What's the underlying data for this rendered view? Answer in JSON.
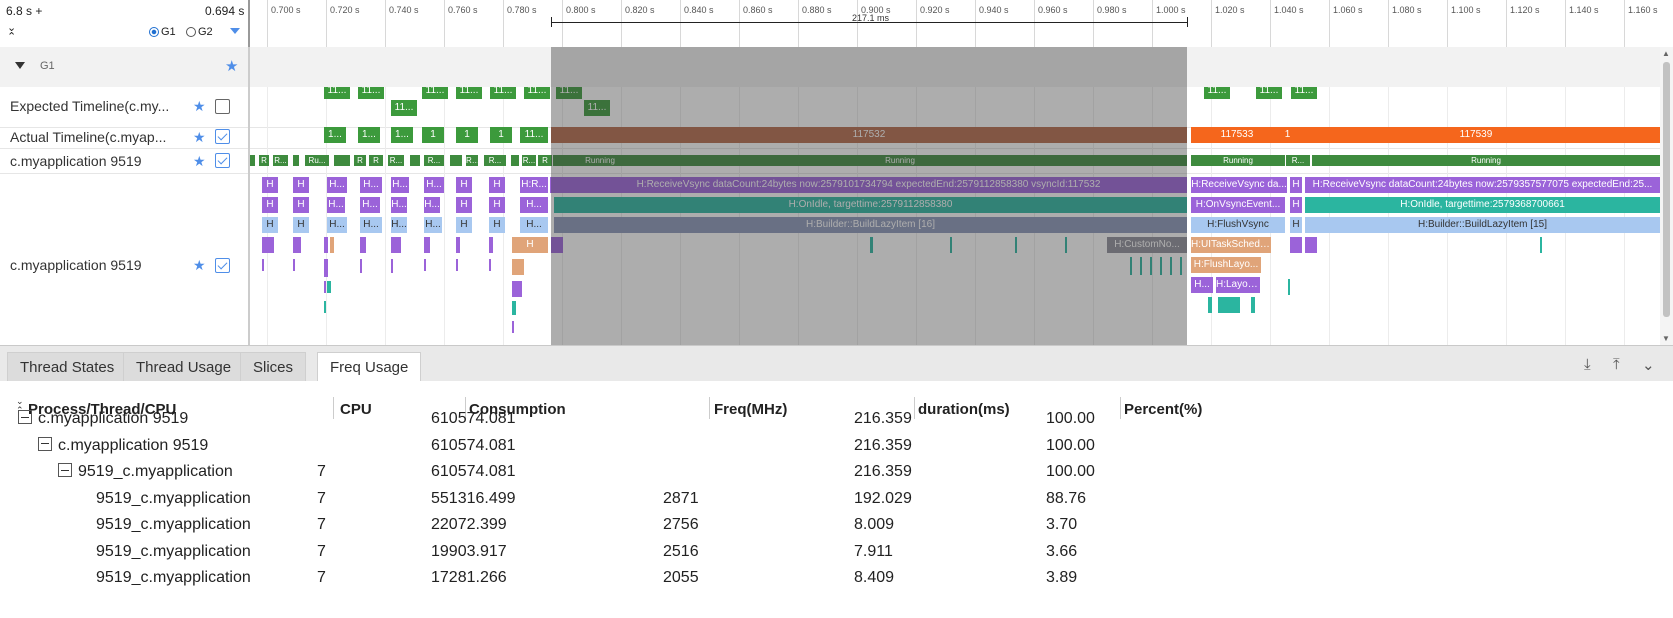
{
  "ruler": {
    "start": "6.8 s +",
    "end": "0.694 s",
    "radio_g1": "G1",
    "radio_g2": "G2",
    "ticks": [
      "0.700 s",
      "0.720 s",
      "0.740 s",
      "0.760 s",
      "0.780 s",
      "0.800 s",
      "0.820 s",
      "0.840 s",
      "0.860 s",
      "0.880 s",
      "0.900 s",
      "0.920 s",
      "0.940 s",
      "0.960 s",
      "0.980 s",
      "1.000 s",
      "1.020 s",
      "1.040 s",
      "1.060 s",
      "1.080 s",
      "1.100 s",
      "1.120 s",
      "1.140 s",
      "1.160 s"
    ],
    "measure": "217.1 ms"
  },
  "group": {
    "label": "G1"
  },
  "rows": {
    "expected": "Expected Timeline(c.my...",
    "actual": "Actual Timeline(c.myap...",
    "process": "c.myapplication 9519",
    "thread": "c.myapplication 9519"
  },
  "slices": {
    "exp_short": "11...",
    "act_short": "1...",
    "act_one": "1",
    "frame_117532": "117532",
    "frame_117533": "117533",
    "frame_117539": "117539",
    "running": "Running",
    "r": "R",
    "r_dots": "R...",
    "ru": "Ru...",
    "h": "H",
    "h_dots": "H...",
    "h_r": "H:R...",
    "receive_vsync_1": "H:ReceiveVsync dataCount:24bytes now:2579101734794 expectedEnd:2579112858380 vsyncId:117532",
    "onidle_1": "H:OnIdle, targettime:2579112858380",
    "builder_1": "H:Builder::BuildLazyItem [16]",
    "custom_node": "H:CustomNo...",
    "receive_vsync_2": "H:ReceiveVsync da...",
    "on_vsync_event": "H:OnVsyncEvent...",
    "flush_vsync": "H:FlushVsync",
    "ui_task_sched": "H:UITaskSchedu...",
    "flush_layout": "H:FlushLayo...",
    "h_layout": "H:Layou...",
    "receive_vsync_3": "H:ReceiveVsync dataCount:24bytes now:2579357577075 expectedEnd:25...",
    "onidle_2": "H:OnIdle, targettime:2579368700661",
    "builder_2": "H:Builder::BuildLazyItem [15]"
  },
  "tabs": [
    "Thread States",
    "Thread Usage",
    "Slices",
    "Freq Usage"
  ],
  "active_tab": "Freq Usage",
  "table": {
    "headers": [
      "Process/Thread/CPU",
      "CPU",
      "Consumption",
      "Freq(MHz)",
      "duration(ms)",
      "Percent(%)"
    ],
    "rows": [
      {
        "name": "c.myapplication 9519",
        "cpu": "",
        "consumption": "610574.081",
        "freq": "",
        "duration": "216.359",
        "percent": "100.00"
      },
      {
        "name": "c.myapplication 9519",
        "cpu": "",
        "consumption": "610574.081",
        "freq": "",
        "duration": "216.359",
        "percent": "100.00"
      },
      {
        "name": "9519_c.myapplication",
        "cpu": "7",
        "consumption": "610574.081",
        "freq": "",
        "duration": "216.359",
        "percent": "100.00"
      },
      {
        "name": "9519_c.myapplication",
        "cpu": "7",
        "consumption": "551316.499",
        "freq": "2871",
        "duration": "192.029",
        "percent": "88.76"
      },
      {
        "name": "9519_c.myapplication",
        "cpu": "7",
        "consumption": "22072.399",
        "freq": "2756",
        "duration": "8.009",
        "percent": "3.70"
      },
      {
        "name": "9519_c.myapplication",
        "cpu": "7",
        "consumption": "19903.917",
        "freq": "2516",
        "duration": "7.911",
        "percent": "3.66"
      },
      {
        "name": "9519_c.myapplication",
        "cpu": "7",
        "consumption": "17281.266",
        "freq": "2055",
        "duration": "8.409",
        "percent": "3.89"
      }
    ]
  },
  "colors": {
    "expected_green": "#3c9a3c",
    "running_green": "#3e8b3e",
    "frame_brown": "#b5694a",
    "frame_orange": "#f5661c",
    "purple": "#9b63d9",
    "teal": "#2bb5a0",
    "light_blue": "#a8c8f0",
    "slate": "#8a96b8",
    "tan": "#e0a479",
    "accent_blue": "#4f8ee8"
  }
}
